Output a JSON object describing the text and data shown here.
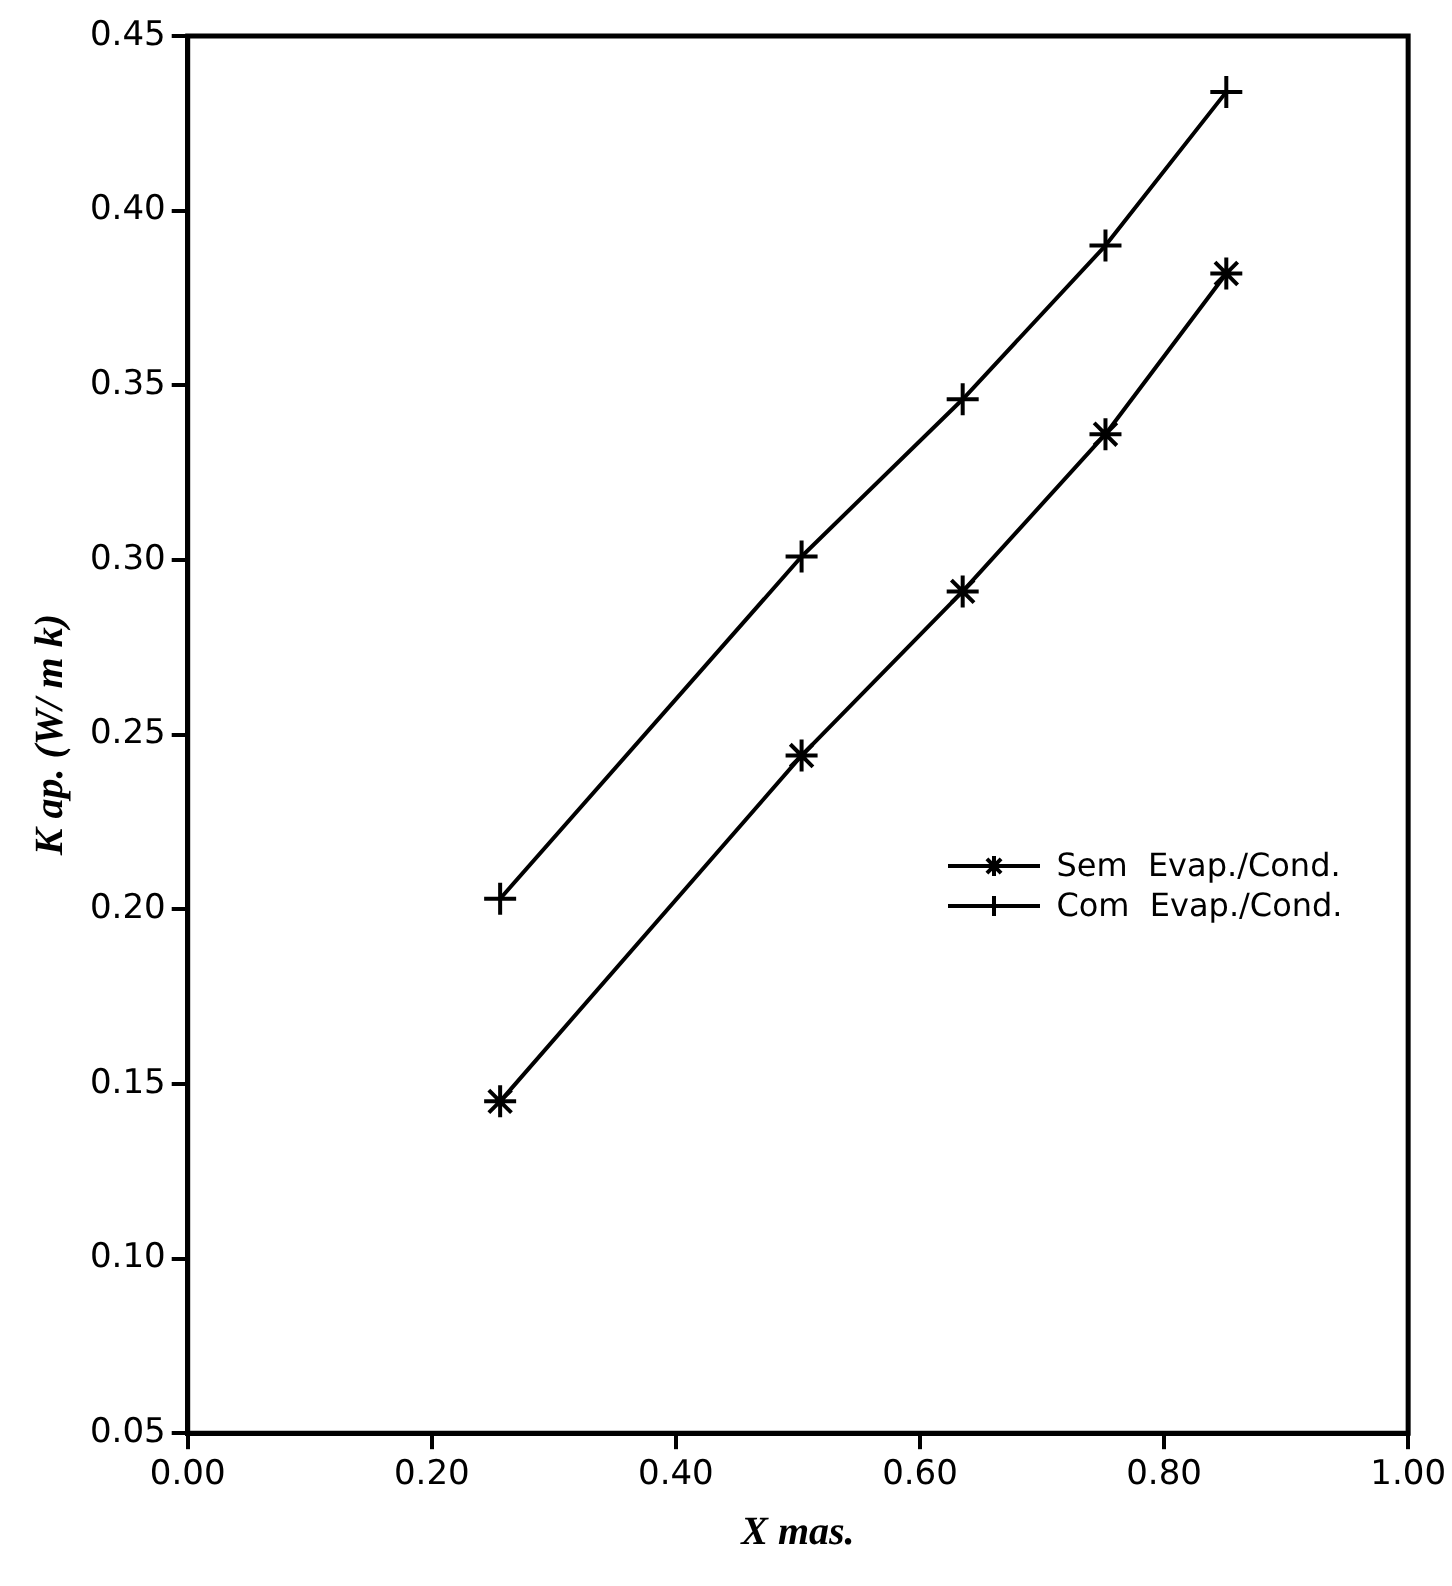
{
  "chart_data": {
    "type": "line",
    "xlabel": "X mas.",
    "ylabel": "K ap. (W/ m k)",
    "series": [
      {
        "name": "Sem  Evap./Cond.",
        "color": "#000000",
        "marker": "cross",
        "x": [
          0.256,
          0.503,
          0.635,
          0.752,
          0.851
        ],
        "values": [
          0.145,
          0.244,
          0.291,
          0.336,
          0.382
        ]
      },
      {
        "name": "Com  Evap./Cond.",
        "color": "#000000",
        "marker": "cross",
        "x": [
          0.256,
          0.503,
          0.635,
          0.752,
          0.851
        ],
        "values": [
          0.203,
          0.301,
          0.346,
          0.39,
          0.434
        ]
      }
    ],
    "xlim": [
      0,
      1
    ],
    "xticks": [
      {
        "value": 0,
        "label": "0.00"
      },
      {
        "value": 0.2,
        "label": "0.20"
      },
      {
        "value": 0.4,
        "label": "0.40"
      },
      {
        "value": 0.6,
        "label": "0.60"
      },
      {
        "value": 0.8,
        "label": "0.80"
      },
      {
        "value": 1,
        "label": "1.00"
      }
    ],
    "ylim": [
      0.05,
      0.45
    ],
    "yticks": [
      0.05,
      {
        "value": 0.1,
        "label": "0.10"
      },
      0.15,
      {
        "value": 0.2,
        "label": "0.20"
      },
      0.25,
      {
        "value": 0.3,
        "label": "0.30"
      },
      0.35,
      {
        "value": 0.4,
        "label": "0.40"
      },
      0.45
    ],
    "grid": false,
    "legend": "right",
    "line_style": "solid"
  }
}
